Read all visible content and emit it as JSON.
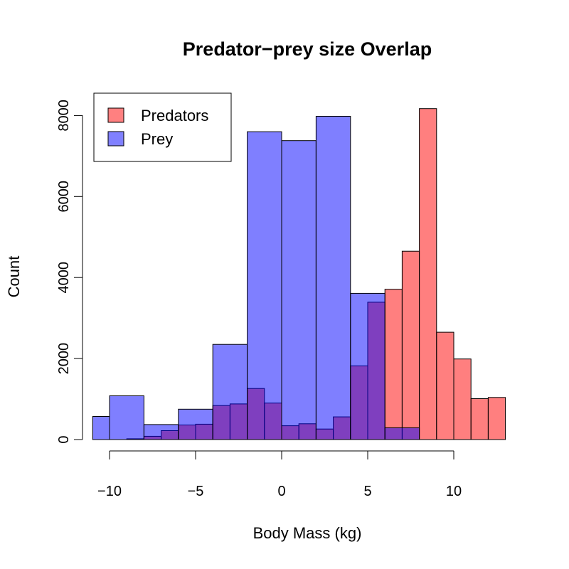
{
  "chart_data": {
    "type": "histogram",
    "title": "Predator−prey size Overlap",
    "xlabel": "Body Mass (kg)",
    "ylabel": "Count",
    "xlim": [
      -11,
      13
    ],
    "ylim": [
      0,
      8500
    ],
    "x_ticks": [
      -10,
      -5,
      0,
      5,
      10
    ],
    "x_tick_labels": [
      "−10",
      "−5",
      "0",
      "5",
      "10"
    ],
    "y_ticks": [
      0,
      2000,
      4000,
      6000,
      8000
    ],
    "y_tick_labels": [
      "0",
      "2000",
      "4000",
      "6000",
      "8000"
    ],
    "grid": false,
    "legend": {
      "position": "top-left",
      "entries": [
        {
          "label": "Predators",
          "color": "#ff8080"
        },
        {
          "label": "Prey",
          "color": "#8080ff"
        }
      ]
    },
    "colors": {
      "predators": "#ff8080",
      "prey": "#8080ff",
      "overlap": "#7f3fbf"
    },
    "series": [
      {
        "name": "Prey",
        "bin_width": 2,
        "bins": [
          {
            "x0": -12,
            "x1": -10,
            "count": 570
          },
          {
            "x0": -10,
            "x1": -8,
            "count": 1080
          },
          {
            "x0": -8,
            "x1": -6,
            "count": 370
          },
          {
            "x0": -6,
            "x1": -4,
            "count": 750
          },
          {
            "x0": -4,
            "x1": -2,
            "count": 2350
          },
          {
            "x0": -2,
            "x1": 0,
            "count": 7600
          },
          {
            "x0": 0,
            "x1": 2,
            "count": 7380
          },
          {
            "x0": 2,
            "x1": 4,
            "count": 7980
          },
          {
            "x0": 4,
            "x1": 6,
            "count": 3610
          },
          {
            "x0": 6,
            "x1": 8,
            "count": 290
          }
        ]
      },
      {
        "name": "Predators",
        "bin_width": 1,
        "bins": [
          {
            "x0": -9,
            "x1": -8,
            "count": 20
          },
          {
            "x0": -8,
            "x1": -7,
            "count": 80
          },
          {
            "x0": -7,
            "x1": -6,
            "count": 220
          },
          {
            "x0": -6,
            "x1": -5,
            "count": 360
          },
          {
            "x0": -5,
            "x1": -4,
            "count": 380
          },
          {
            "x0": -4,
            "x1": -3,
            "count": 840
          },
          {
            "x0": -3,
            "x1": -2,
            "count": 880
          },
          {
            "x0": -2,
            "x1": -1,
            "count": 1260
          },
          {
            "x0": -1,
            "x1": 0,
            "count": 900
          },
          {
            "x0": 0,
            "x1": 1,
            "count": 340
          },
          {
            "x0": 1,
            "x1": 2,
            "count": 390
          },
          {
            "x0": 2,
            "x1": 3,
            "count": 260
          },
          {
            "x0": 3,
            "x1": 4,
            "count": 560
          },
          {
            "x0": 4,
            "x1": 5,
            "count": 1820
          },
          {
            "x0": 5,
            "x1": 6,
            "count": 3390
          },
          {
            "x0": 6,
            "x1": 7,
            "count": 3710
          },
          {
            "x0": 7,
            "x1": 8,
            "count": 4650
          },
          {
            "x0": 8,
            "x1": 9,
            "count": 8170
          },
          {
            "x0": 9,
            "x1": 10,
            "count": 2650
          },
          {
            "x0": 10,
            "x1": 11,
            "count": 1990
          },
          {
            "x0": 11,
            "x1": 12,
            "count": 1010
          },
          {
            "x0": 12,
            "x1": 13,
            "count": 1040
          }
        ]
      }
    ]
  }
}
